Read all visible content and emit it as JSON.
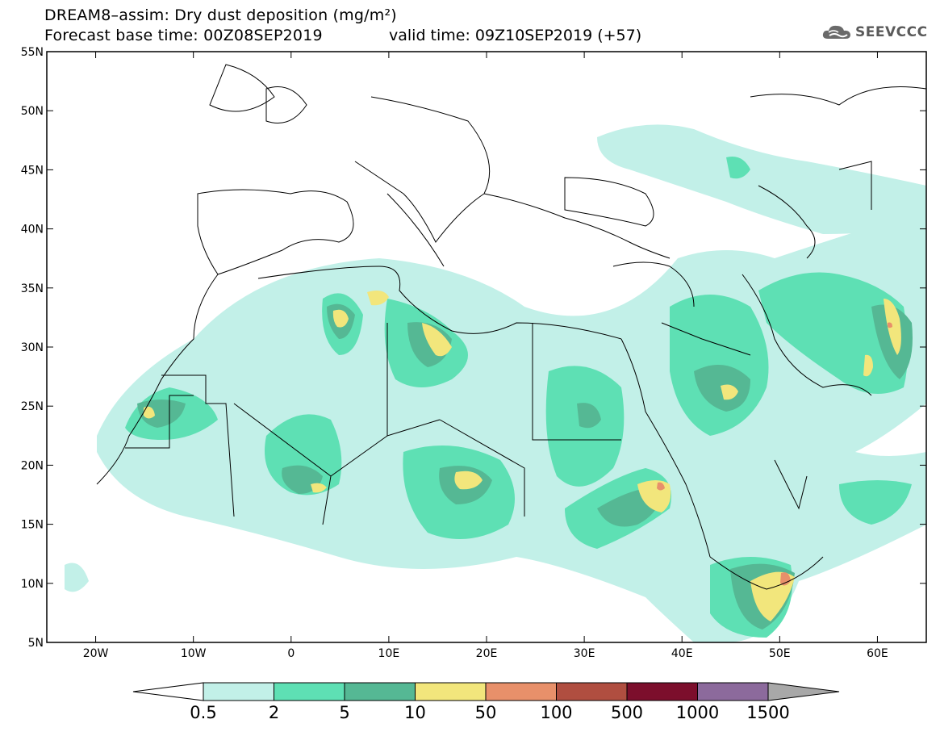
{
  "header": {
    "title_line1": "DREAM8–assim: Dry dust deposition (mg/m²)",
    "title_line2_left": "Forecast base time: 00Z08SEP2019",
    "title_line2_right": "valid time: 09Z10SEP2019 (+57)",
    "logo_text": "SEEVCCC",
    "logo_icon": "cloud-icon"
  },
  "map": {
    "lat_labels": [
      "55N",
      "50N",
      "45N",
      "40N",
      "35N",
      "30N",
      "25N",
      "20N",
      "15N",
      "10N",
      "5N"
    ],
    "lon_labels": [
      "20W",
      "10W",
      "0",
      "10E",
      "20E",
      "30E",
      "40E",
      "50E",
      "60E"
    ],
    "lat_range": [
      5,
      55
    ],
    "lon_range": [
      -25,
      65
    ]
  },
  "legend": {
    "levels": [
      "0.5",
      "2",
      "5",
      "10",
      "50",
      "100",
      "500",
      "1000",
      "1500"
    ],
    "colors": [
      "#ffffff",
      "#c2f0e8",
      "#5ee0b4",
      "#55b894",
      "#f2e67c",
      "#e8906a",
      "#b04e40",
      "#7c0e2c",
      "#8c6a9c",
      "#a8a8a8"
    ]
  }
}
